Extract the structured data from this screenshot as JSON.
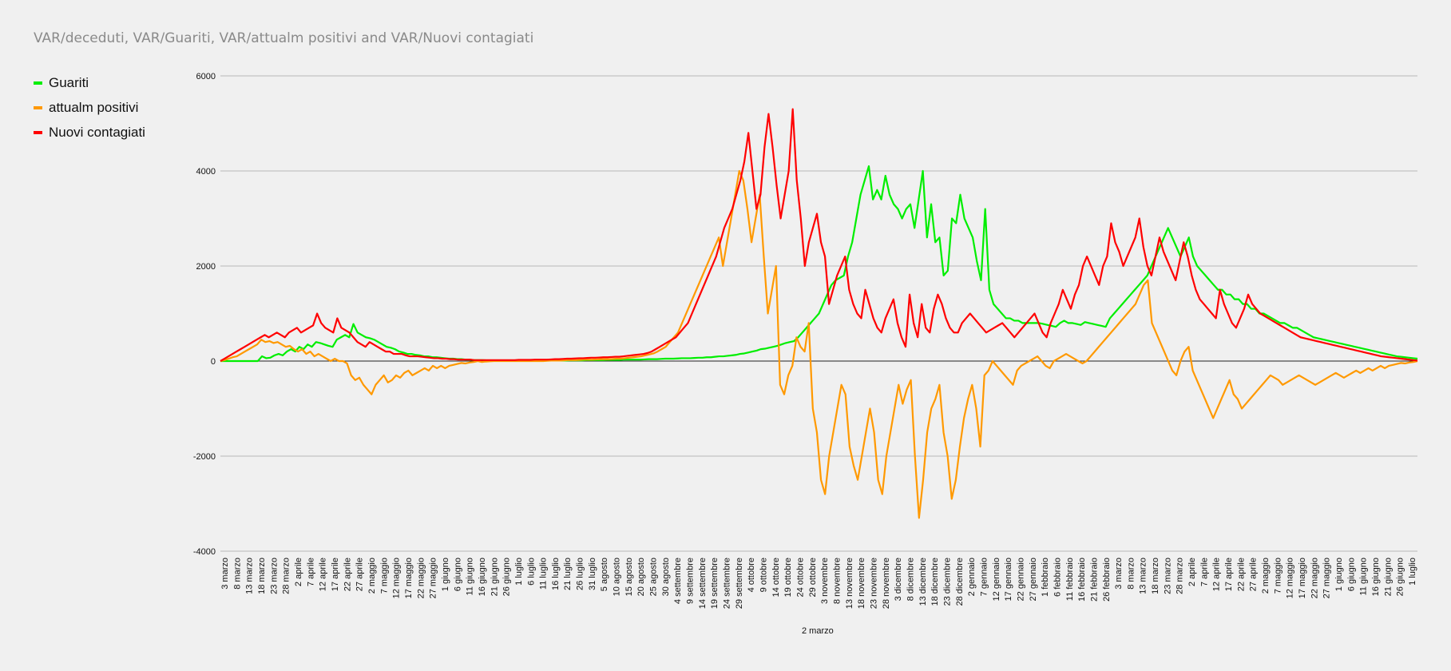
{
  "chart_data": {
    "type": "line",
    "title": "VAR/deceduti, VAR/Guariti, VAR/attualm positivi and VAR/Nuovi  contagiati",
    "xlabel": "2 marzo",
    "ylabel": "",
    "ylim": [
      -4000,
      6000
    ],
    "yticks": [
      6000,
      4000,
      2000,
      0,
      -2000,
      -4000
    ],
    "grid": true,
    "legend_position": "left",
    "x_tick_labels": [
      "3 marzo",
      "8 marzo",
      "13 marzo",
      "18 marzo",
      "23 marzo",
      "28 marzo",
      "2 aprile",
      "7 aprile",
      "12 aprile",
      "17 aprile",
      "22 aprile",
      "27 aprile",
      "2 maggio",
      "7 maggio",
      "12 maggio",
      "17 maggio",
      "22 maggio",
      "27 maggio",
      "1 giugno",
      "6 giugno",
      "11 giugno",
      "16 giugno",
      "21 giugno",
      "26 giugno",
      "1 luglio",
      "6 luglio",
      "11 luglio",
      "16 luglio",
      "21 luglio",
      "26 luglio",
      "31 luglio",
      "5 agosto",
      "10 agosto",
      "15 agosto",
      "20 agosto",
      "25 agosto",
      "30 agosto",
      "4 settembre",
      "9 settembre",
      "14 settembre",
      "19 settembre",
      "24 settembre",
      "29 settembre",
      "4 ottobre",
      "9 ottobre",
      "14 ottobre",
      "19 ottobre",
      "24 ottobre",
      "29 ottobre",
      "3 novembre",
      "8 novembre",
      "13 novembre",
      "18 novembre",
      "23 novembre",
      "28 novembre",
      "3 dicembre",
      "8 dicembre",
      "13 dicembre",
      "18 dicembre",
      "23 dicembre",
      "28 dicembre",
      "2 gennaio",
      "7 gennaio",
      "12 gennaio",
      "17 gennaio",
      "22 gennaio",
      "27 gennaio",
      "1 febbraio",
      "6 febbraio",
      "11 febbraio",
      "16 febbraio",
      "21 febbraio",
      "26 febbraio",
      "3 marzo",
      "8 marzo",
      "13 marzo",
      "18 marzo",
      "23 marzo",
      "28 marzo",
      "2 aprile",
      "7 aprile",
      "12 aprile",
      "17 aprile",
      "22 aprile",
      "27 aprile",
      "2 maggio",
      "7 maggio",
      "12 maggio",
      "17 maggio",
      "22 maggio",
      "27 maggio",
      "1 giugno",
      "6 giugno",
      "11 giugno",
      "16 giugno",
      "21 giugno",
      "26 giugno",
      "1 luglio"
    ],
    "series": [
      {
        "name": "Guariti",
        "color": "#00ee00",
        "values": [
          0,
          0,
          0,
          0,
          0,
          0,
          0,
          0,
          0,
          0,
          100,
          60,
          70,
          120,
          150,
          120,
          200,
          250,
          200,
          300,
          250,
          350,
          300,
          400,
          380,
          350,
          320,
          300,
          450,
          500,
          550,
          500,
          780,
          600,
          550,
          500,
          480,
          450,
          400,
          350,
          300,
          280,
          250,
          200,
          180,
          150,
          150,
          130,
          120,
          100,
          100,
          80,
          80,
          70,
          60,
          50,
          50,
          40,
          40,
          30,
          30,
          20,
          20,
          20,
          15,
          15,
          15,
          15,
          10,
          10,
          10,
          10,
          10,
          10,
          10,
          10,
          10,
          10,
          10,
          10,
          10,
          10,
          10,
          10,
          15,
          15,
          15,
          15,
          20,
          20,
          20,
          20,
          20,
          25,
          25,
          25,
          25,
          30,
          30,
          30,
          30,
          30,
          35,
          40,
          40,
          40,
          45,
          50,
          50,
          50,
          55,
          60,
          60,
          60,
          65,
          70,
          70,
          80,
          80,
          90,
          100,
          100,
          110,
          120,
          130,
          150,
          160,
          180,
          200,
          220,
          250,
          260,
          280,
          300,
          320,
          350,
          380,
          400,
          420,
          500,
          600,
          700,
          800,
          900,
          1000,
          1200,
          1400,
          1600,
          1700,
          1750,
          1800,
          2200,
          2500,
          3000,
          3500,
          3800,
          4100,
          3400,
          3600,
          3400,
          3900,
          3500,
          3300,
          3200,
          3000,
          3200,
          3300,
          2800,
          3400,
          4000,
          2600,
          3300,
          2500,
          2600,
          1800,
          1900,
          3000,
          2900,
          3500,
          3000,
          2800,
          2600,
          2100,
          1700,
          3200,
          1500,
          1200,
          1100,
          1000,
          900,
          900,
          850,
          850,
          800,
          800,
          800,
          800,
          800,
          780,
          760,
          740,
          720,
          800,
          850,
          800,
          800,
          780,
          760,
          820,
          800,
          780,
          760,
          740,
          720,
          900,
          1000,
          1100,
          1200,
          1300,
          1400,
          1500,
          1600,
          1700,
          1800,
          2000,
          2200,
          2400,
          2600,
          2800,
          2600,
          2400,
          2200,
          2400,
          2600,
          2200,
          2000,
          1900,
          1800,
          1700,
          1600,
          1500,
          1500,
          1400,
          1400,
          1300,
          1300,
          1200,
          1200,
          1100,
          1100,
          1000,
          1000,
          950,
          900,
          850,
          800,
          800,
          750,
          700,
          700,
          650,
          600,
          550,
          500,
          480,
          460,
          440,
          420,
          400,
          380,
          360,
          340,
          320,
          300,
          280,
          260,
          240,
          220,
          200,
          180,
          160,
          140,
          120,
          100,
          90,
          80,
          70,
          60,
          50
        ]
      },
      {
        "name": "attualm positivi",
        "color": "#ff9900",
        "values": [
          0,
          20,
          50,
          80,
          100,
          150,
          200,
          250,
          300,
          350,
          450,
          400,
          420,
          380,
          400,
          350,
          300,
          320,
          250,
          200,
          250,
          150,
          200,
          100,
          150,
          100,
          50,
          0,
          50,
          0,
          0,
          -50,
          -300,
          -400,
          -350,
          -500,
          -600,
          -700,
          -500,
          -400,
          -300,
          -450,
          -400,
          -300,
          -350,
          -250,
          -200,
          -300,
          -250,
          -200,
          -150,
          -200,
          -100,
          -150,
          -100,
          -150,
          -100,
          -80,
          -60,
          -40,
          -50,
          -30,
          -20,
          0,
          -20,
          -10,
          -5,
          0,
          0,
          0,
          0,
          0,
          0,
          0,
          0,
          0,
          0,
          0,
          0,
          0,
          5,
          10,
          10,
          10,
          15,
          20,
          20,
          20,
          25,
          30,
          30,
          30,
          35,
          40,
          40,
          40,
          45,
          50,
          50,
          60,
          70,
          80,
          90,
          100,
          120,
          140,
          160,
          200,
          250,
          300,
          400,
          500,
          600,
          800,
          1000,
          1200,
          1400,
          1600,
          1800,
          2000,
          2200,
          2400,
          2600,
          2000,
          2500,
          3000,
          3500,
          4000,
          3800,
          3200,
          2500,
          3000,
          3500,
          2200,
          1000,
          1500,
          2000,
          -500,
          -700,
          -300,
          -100,
          500,
          300,
          200,
          800,
          -1000,
          -1500,
          -2500,
          -2800,
          -2000,
          -1500,
          -1000,
          -500,
          -700,
          -1800,
          -2200,
          -2500,
          -2000,
          -1500,
          -1000,
          -1500,
          -2500,
          -2800,
          -2000,
          -1500,
          -1000,
          -500,
          -900,
          -600,
          -400,
          -2000,
          -3300,
          -2500,
          -1500,
          -1000,
          -800,
          -500,
          -1500,
          -2000,
          -2900,
          -2500,
          -1800,
          -1200,
          -800,
          -500,
          -1000,
          -1800,
          -300,
          -200,
          0,
          -100,
          -200,
          -300,
          -400,
          -500,
          -200,
          -100,
          -50,
          0,
          50,
          100,
          0,
          -100,
          -150,
          0,
          50,
          100,
          150,
          100,
          50,
          0,
          -50,
          0,
          100,
          200,
          300,
          400,
          500,
          600,
          700,
          800,
          900,
          1000,
          1100,
          1200,
          1400,
          1600,
          1700,
          800,
          600,
          400,
          200,
          0,
          -200,
          -300,
          0,
          200,
          300,
          -200,
          -400,
          -600,
          -800,
          -1000,
          -1200,
          -1000,
          -800,
          -600,
          -400,
          -700,
          -800,
          -1000,
          -900,
          -800,
          -700,
          -600,
          -500,
          -400,
          -300,
          -350,
          -400,
          -500,
          -450,
          -400,
          -350,
          -300,
          -350,
          -400,
          -450,
          -500,
          -450,
          -400,
          -350,
          -300,
          -250,
          -300,
          -350,
          -300,
          -250,
          -200,
          -250,
          -200,
          -150,
          -200,
          -150,
          -100,
          -150,
          -100,
          -80,
          -60,
          -40,
          -50,
          -30,
          -20,
          0
        ]
      },
      {
        "name": "Nuovi  contagiati",
        "color": "#ff0000",
        "values": [
          0,
          50,
          100,
          150,
          200,
          250,
          300,
          350,
          400,
          450,
          500,
          550,
          500,
          550,
          600,
          550,
          500,
          600,
          650,
          700,
          600,
          650,
          700,
          750,
          1000,
          800,
          700,
          650,
          600,
          900,
          700,
          650,
          600,
          500,
          400,
          350,
          300,
          400,
          350,
          300,
          250,
          200,
          200,
          150,
          150,
          150,
          120,
          100,
          100,
          100,
          90,
          80,
          70,
          60,
          60,
          50,
          50,
          40,
          40,
          30,
          30,
          30,
          30,
          20,
          20,
          20,
          20,
          20,
          20,
          20,
          20,
          20,
          20,
          20,
          25,
          25,
          25,
          25,
          30,
          30,
          30,
          30,
          35,
          40,
          40,
          45,
          50,
          50,
          55,
          60,
          60,
          65,
          70,
          70,
          75,
          80,
          80,
          85,
          90,
          90,
          100,
          110,
          120,
          130,
          140,
          150,
          170,
          200,
          250,
          300,
          350,
          400,
          450,
          500,
          600,
          700,
          800,
          1000,
          1200,
          1400,
          1600,
          1800,
          2000,
          2200,
          2500,
          2800,
          3000,
          3200,
          3500,
          3800,
          4200,
          4800,
          4000,
          3200,
          3500,
          4500,
          5200,
          4500,
          3700,
          3000,
          3500,
          4000,
          5300,
          3800,
          3000,
          2000,
          2500,
          2800,
          3100,
          2500,
          2200,
          1200,
          1500,
          1800,
          2000,
          2200,
          1500,
          1200,
          1000,
          900,
          1500,
          1200,
          900,
          700,
          600,
          900,
          1100,
          1300,
          800,
          500,
          300,
          1400,
          800,
          500,
          1200,
          700,
          600,
          1100,
          1400,
          1200,
          900,
          700,
          600,
          600,
          800,
          900,
          1000,
          900,
          800,
          700,
          600,
          650,
          700,
          750,
          800,
          700,
          600,
          500,
          600,
          700,
          800,
          900,
          1000,
          800,
          600,
          500,
          800,
          1000,
          1200,
          1500,
          1300,
          1100,
          1400,
          1600,
          2000,
          2200,
          2000,
          1800,
          1600,
          2000,
          2200,
          2900,
          2500,
          2300,
          2000,
          2200,
          2400,
          2600,
          3000,
          2400,
          2000,
          1800,
          2200,
          2600,
          2300,
          2100,
          1900,
          1700,
          2100,
          2500,
          2200,
          1800,
          1500,
          1300,
          1200,
          1100,
          1000,
          900,
          1500,
          1200,
          1000,
          800,
          700,
          900,
          1100,
          1400,
          1200,
          1100,
          1000,
          950,
          900,
          850,
          800,
          750,
          700,
          650,
          600,
          550,
          500,
          480,
          460,
          440,
          420,
          400,
          380,
          360,
          340,
          320,
          300,
          280,
          260,
          240,
          220,
          200,
          180,
          160,
          140,
          120,
          100,
          90,
          80,
          70,
          60,
          50,
          40,
          30,
          20,
          10
        ]
      }
    ]
  }
}
